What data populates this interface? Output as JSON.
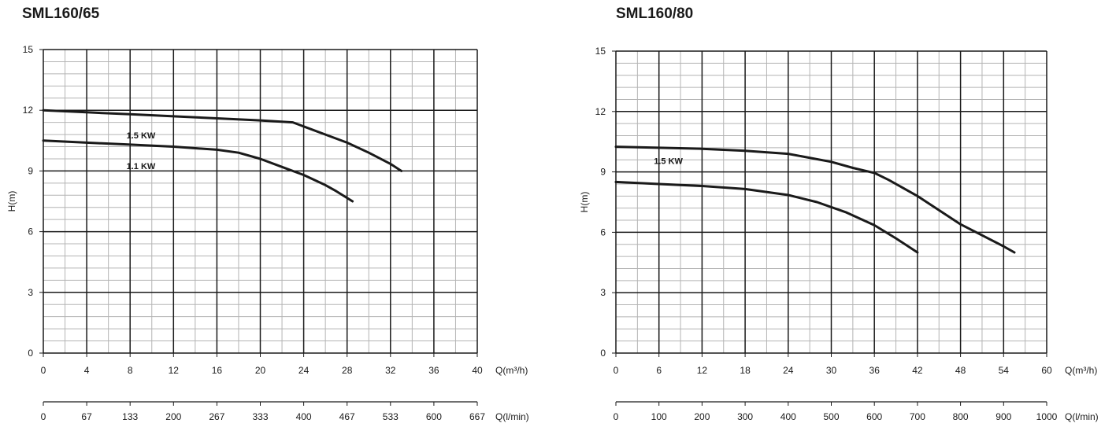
{
  "chart_data": [
    {
      "type": "line",
      "title": "SML160/65",
      "ylabel": "H(m)",
      "ylim": [
        0,
        15
      ],
      "yticks": [
        0,
        3,
        6,
        9,
        12,
        15
      ],
      "xlabel": "Q(m³/h)",
      "xlim": [
        0,
        40
      ],
      "xticks": [
        0,
        4,
        8,
        12,
        16,
        20,
        24,
        28,
        32,
        36,
        40
      ],
      "xlabel2": "Q(l/min)",
      "xticks2": [
        "0",
        "67",
        "133",
        "200",
        "267",
        "333",
        "400",
        "467",
        "533",
        "600",
        "667"
      ],
      "grid": true,
      "series": [
        {
          "name": "1.5 KW",
          "x": [
            0,
            4,
            8,
            12,
            16,
            20,
            23,
            24,
            26,
            28,
            30,
            32,
            33
          ],
          "y": [
            12.0,
            11.9,
            11.8,
            11.7,
            11.6,
            11.5,
            11.4,
            11.2,
            10.8,
            10.4,
            9.9,
            9.35,
            9.0
          ]
        },
        {
          "name": "1.1 KW",
          "x": [
            0,
            4,
            8,
            12,
            16,
            18,
            20,
            22,
            24,
            26,
            27,
            28.5
          ],
          "y": [
            10.5,
            10.4,
            10.3,
            10.2,
            10.05,
            9.9,
            9.6,
            9.2,
            8.8,
            8.3,
            8.0,
            7.5
          ]
        }
      ],
      "annotations": [
        {
          "text": "1.5 KW",
          "x": 9,
          "y": 10.6
        },
        {
          "text": "1.1 KW",
          "x": 9,
          "y": 9.1
        }
      ]
    },
    {
      "type": "line",
      "title": "SML160/80",
      "ylabel": "H(m)",
      "ylim": [
        0,
        15
      ],
      "yticks": [
        0,
        3,
        6,
        9,
        12,
        15
      ],
      "xlabel": "Q(m³/h)",
      "xlim": [
        0,
        60
      ],
      "xticks": [
        0,
        6,
        12,
        18,
        24,
        30,
        36,
        42,
        48,
        54,
        60
      ],
      "xlabel2": "Q(l/min)",
      "xticks2": [
        "0",
        "100",
        "200",
        "300",
        "400",
        "500",
        "600",
        "700",
        "800",
        "900",
        "1000"
      ],
      "grid": true,
      "series": [
        {
          "name": "1.5 KW",
          "x": [
            0,
            6,
            12,
            18,
            24,
            30,
            33,
            36,
            38,
            42,
            48,
            54,
            55.5
          ],
          "y": [
            10.25,
            10.2,
            10.15,
            10.05,
            9.9,
            9.5,
            9.2,
            8.95,
            8.6,
            7.8,
            6.4,
            5.3,
            5.0
          ]
        },
        {
          "x": [
            0,
            6,
            12,
            18,
            24,
            28,
            32,
            36,
            39,
            42
          ],
          "y": [
            8.5,
            8.4,
            8.3,
            8.15,
            7.85,
            7.5,
            7.0,
            6.35,
            5.7,
            5.0
          ]
        }
      ],
      "annotations": [
        {
          "text": "1.5 KW",
          "x": 7.3,
          "y": 9.4
        }
      ]
    }
  ]
}
